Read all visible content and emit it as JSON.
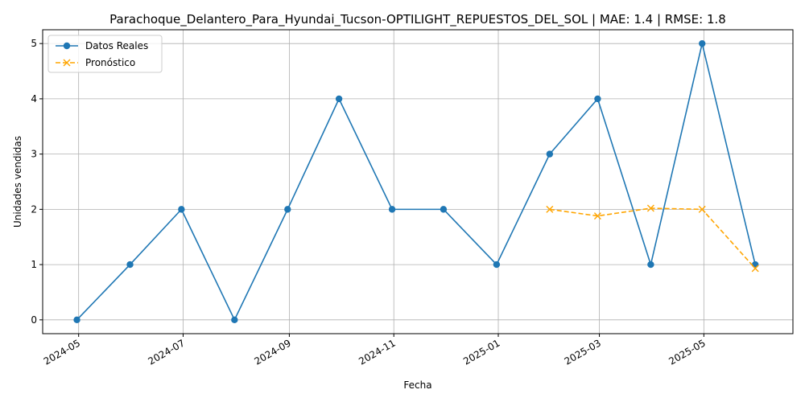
{
  "chart_data": {
    "type": "line",
    "title": "Parachoque_Delantero_Para_Hyundai_Tucson-OPTILIGHT_REPUESTOS_DEL_SOL | MAE: 1.4 | RMSE: 1.8",
    "xlabel": "Fecha",
    "ylabel": "Unidades vendidas",
    "xlim": [
      "2024-04-10",
      "2025-06-22"
    ],
    "ylim": [
      -0.25,
      5.25
    ],
    "x_ticks": [
      "2024-05-01",
      "2024-07-01",
      "2024-09-01",
      "2024-11-01",
      "2025-01-01",
      "2025-03-01",
      "2025-05-01"
    ],
    "x_tick_labels": [
      "2024-05",
      "2024-07",
      "2024-09",
      "2024-11",
      "2025-01",
      "2025-03",
      "2025-05"
    ],
    "y_ticks": [
      0,
      1,
      2,
      3,
      4,
      5
    ],
    "y_tick_labels": [
      "0",
      "1",
      "2",
      "3",
      "4",
      "5"
    ],
    "grid": true,
    "legend_position": "top-left",
    "series": [
      {
        "name": "Datos Reales",
        "color": "#1f77b4",
        "style": "solid",
        "marker": "circle",
        "x": [
          "2024-04-30",
          "2024-05-31",
          "2024-06-30",
          "2024-07-31",
          "2024-08-31",
          "2024-09-30",
          "2024-10-31",
          "2024-11-30",
          "2024-12-31",
          "2025-01-31",
          "2025-02-28",
          "2025-03-31",
          "2025-04-30",
          "2025-05-31"
        ],
        "values": [
          0,
          1,
          2,
          0,
          2,
          4,
          2,
          2,
          1,
          3,
          4,
          1,
          5,
          1
        ]
      },
      {
        "name": "Pronóstico",
        "color": "#ffa500",
        "style": "dashed",
        "marker": "x",
        "x": [
          "2025-01-31",
          "2025-02-28",
          "2025-03-31",
          "2025-04-30",
          "2025-05-31"
        ],
        "values": [
          2.0,
          1.88,
          2.02,
          2.0,
          0.93
        ]
      }
    ]
  }
}
